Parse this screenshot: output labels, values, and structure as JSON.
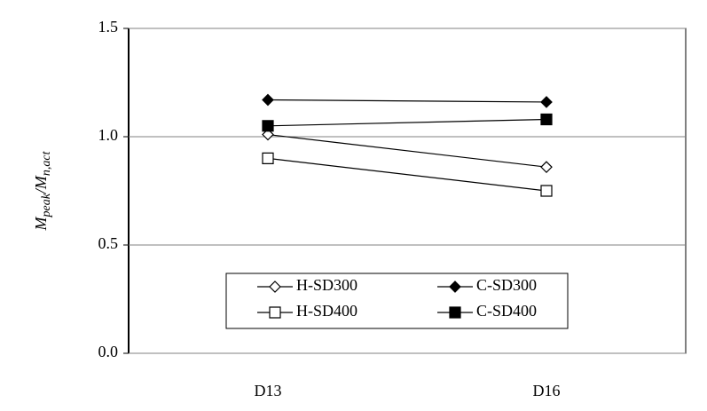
{
  "chart_data": {
    "type": "line",
    "ylabel_parts": [
      "M",
      "peak",
      "/M",
      "n,act"
    ],
    "categories": [
      "D13",
      "D16"
    ],
    "series": [
      {
        "name": "H-SD300",
        "color": "#000000",
        "marker": "diamond",
        "fill": "#ffffff",
        "values": [
          1.01,
          0.86
        ]
      },
      {
        "name": "C-SD300",
        "color": "#000000",
        "marker": "diamond",
        "fill": "#000000",
        "values": [
          1.17,
          1.16
        ]
      },
      {
        "name": "H-SD400",
        "color": "#000000",
        "marker": "square",
        "fill": "#ffffff",
        "values": [
          0.9,
          0.75
        ]
      },
      {
        "name": "C-SD400",
        "color": "#000000",
        "marker": "square",
        "fill": "#000000",
        "values": [
          1.05,
          1.08
        ]
      }
    ],
    "ylim": [
      0,
      1.5
    ],
    "yticks": [
      {
        "value": 0,
        "label": "0.0"
      },
      0.5,
      {
        "value": 1,
        "label": "1.0"
      },
      1.5
    ],
    "grid": true,
    "legend": "bottom"
  }
}
